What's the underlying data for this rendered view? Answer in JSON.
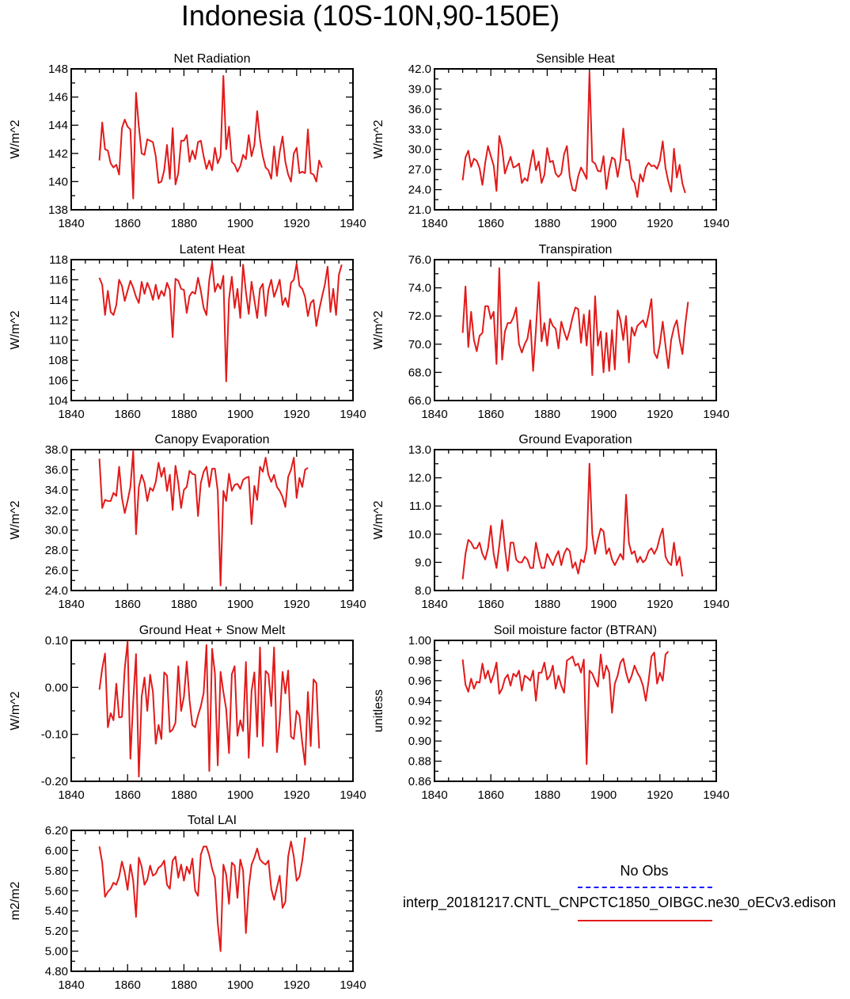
{
  "page_title": "Indonesia (10S-10N,90-150E)",
  "legend": {
    "obs_label": "No Obs",
    "model_label": "interp_20181217.CNTL_CNPCTC1850_OIBGC.ne30_oECv3.edison",
    "obs_color": "#1a1aff",
    "model_color": "#e21a1a"
  },
  "chart_data": [
    {
      "type": "line",
      "title": "Net Radiation",
      "ylabel": "W/m^2",
      "xlim": [
        1840,
        1940
      ],
      "ylim": [
        138,
        148
      ],
      "x_ticks": [
        1840,
        1860,
        1880,
        1900,
        1920,
        1940
      ],
      "y_ticks": [
        "138",
        "140",
        "142",
        "144",
        "146",
        "148"
      ],
      "series": [
        {
          "color": "#e21a1a",
          "x_start": 1850,
          "x_step": 1,
          "values": [
            141.5,
            144.2,
            142.3,
            142.2,
            141.3,
            141.0,
            141.2,
            140.5,
            143.8,
            144.4,
            143.9,
            143.7,
            138.8,
            146.3,
            143.9,
            142.0,
            141.9,
            143.0,
            142.9,
            142.8,
            141.8,
            139.9,
            140.0,
            140.8,
            142.6,
            140.2,
            143.8,
            139.8,
            140.6,
            142.9,
            142.9,
            143.3,
            141.4,
            142.2,
            141.6,
            142.8,
            142.9,
            141.8,
            140.9,
            141.5,
            140.8,
            142.4,
            141.3,
            141.8,
            147.5,
            142.3,
            143.9,
            141.4,
            141.2,
            140.7,
            141.1,
            141.9,
            141.6,
            143.3,
            141.8,
            142.6,
            145.0,
            143.0,
            141.8,
            141.0,
            140.8,
            140.2,
            142.5,
            140.4,
            142.1,
            143.2,
            141.4,
            140.5,
            140.0,
            142.0,
            142.4,
            140.6,
            140.7,
            140.6,
            143.7,
            140.6,
            140.5,
            140.0,
            141.5,
            141.0
          ]
        }
      ]
    },
    {
      "type": "line",
      "title": "Sensible Heat",
      "ylabel": "W/m^2",
      "xlim": [
        1840,
        1940
      ],
      "ylim": [
        21.0,
        42.0
      ],
      "x_ticks": [
        1840,
        1860,
        1880,
        1900,
        1920,
        1940
      ],
      "y_ticks": [
        "21.0",
        "24.0",
        "27.0",
        "30.0",
        "33.0",
        "36.0",
        "39.0",
        "42.0"
      ],
      "series": [
        {
          "color": "#e21a1a",
          "x_start": 1850,
          "x_step": 1,
          "values": [
            25.4,
            28.8,
            29.8,
            27.4,
            28.6,
            28.3,
            27.2,
            24.7,
            28.0,
            30.5,
            29.0,
            27.6,
            23.8,
            32.0,
            30.2,
            26.4,
            27.7,
            28.9,
            27.3,
            27.5,
            27.9,
            25.0,
            25.7,
            25.3,
            27.7,
            29.9,
            26.9,
            28.2,
            25.0,
            26.2,
            30.2,
            28.1,
            28.3,
            26.4,
            25.9,
            26.4,
            29.3,
            30.5,
            25.9,
            24.0,
            23.8,
            26.0,
            27.3,
            26.5,
            25.6,
            41.5,
            28.2,
            27.9,
            26.8,
            26.7,
            29.0,
            24.1,
            26.9,
            28.8,
            28.5,
            25.9,
            28.3,
            33.1,
            28.4,
            28.4,
            25.6,
            25.0,
            22.9,
            26.3,
            25.2,
            27.3,
            28.0,
            27.5,
            27.6,
            27.1,
            28.3,
            31.2,
            27.2,
            25.2,
            23.7,
            30.1,
            25.8,
            27.7,
            24.9,
            23.5
          ]
        }
      ]
    },
    {
      "type": "line",
      "title": "Latent Heat",
      "ylabel": "W/m^2",
      "xlim": [
        1840,
        1940
      ],
      "ylim": [
        104,
        118
      ],
      "x_ticks": [
        1840,
        1860,
        1880,
        1900,
        1920,
        1940
      ],
      "y_ticks": [
        "104",
        "106",
        "108",
        "110",
        "112",
        "114",
        "116",
        "118"
      ],
      "series": [
        {
          "color": "#e21a1a",
          "x_start": 1850,
          "x_step": 1,
          "values": [
            116.2,
            115.5,
            112.5,
            114.9,
            112.8,
            112.5,
            113.5,
            116.0,
            115.4,
            113.9,
            114.9,
            115.9,
            115.2,
            114.3,
            113.7,
            115.8,
            114.6,
            115.7,
            115.0,
            114.0,
            115.5,
            114.1,
            114.9,
            114.4,
            115.7,
            115.0,
            110.3,
            116.1,
            115.9,
            115.1,
            115.0,
            112.7,
            114.4,
            114.8,
            114.6,
            116.2,
            114.9,
            113.2,
            112.5,
            116.0,
            117.7,
            114.8,
            115.6,
            115.1,
            116.4,
            105.9,
            114.1,
            116.3,
            113.2,
            115.1,
            112.2,
            117.5,
            114.8,
            112.6,
            115.8,
            114.0,
            112.2,
            115.1,
            115.6,
            112.4,
            115.0,
            116.0,
            114.3,
            115.1,
            116.0,
            113.5,
            114.2,
            113.3,
            115.7,
            116.0,
            117.6,
            115.4,
            115.1,
            114.3,
            112.4,
            113.7,
            114.0,
            111.4,
            113.0,
            114.3,
            115.5,
            117.3,
            112.8,
            115.1,
            112.5,
            116.5,
            117.5
          ]
        }
      ]
    },
    {
      "type": "line",
      "title": "Transpiration",
      "ylabel": "W/m^2",
      "xlim": [
        1840,
        1940
      ],
      "ylim": [
        66.0,
        76.0
      ],
      "x_ticks": [
        1840,
        1860,
        1880,
        1900,
        1920,
        1940
      ],
      "y_ticks": [
        "66.0",
        "68.0",
        "70.0",
        "72.0",
        "74.0",
        "76.0"
      ],
      "series": [
        {
          "color": "#e21a1a",
          "x_start": 1850,
          "x_step": 1,
          "values": [
            70.8,
            74.1,
            69.8,
            72.3,
            70.3,
            69.5,
            70.6,
            70.8,
            72.7,
            72.7,
            71.8,
            72.3,
            68.6,
            75.4,
            68.9,
            70.9,
            71.5,
            71.5,
            71.9,
            72.6,
            70.0,
            69.4,
            70.0,
            70.4,
            71.7,
            68.1,
            71.0,
            74.4,
            70.2,
            71.5,
            69.9,
            71.8,
            71.3,
            71.1,
            69.7,
            71.6,
            70.9,
            70.3,
            71.0,
            71.9,
            72.6,
            72.5,
            70.1,
            72.1,
            69.9,
            72.4,
            67.8,
            73.4,
            69.9,
            70.9,
            68.0,
            70.8,
            68.1,
            71.0,
            68.2,
            72.4,
            71.7,
            70.3,
            72.0,
            68.7,
            71.2,
            70.6,
            71.3,
            71.5,
            71.7,
            71.2,
            72.1,
            73.2,
            69.4,
            69.0,
            70.0,
            71.6,
            69.9,
            68.3,
            70.3,
            71.2,
            71.7,
            70.3,
            69.3,
            71.4,
            73.0
          ]
        }
      ]
    },
    {
      "type": "line",
      "title": "Canopy Evaporation",
      "ylabel": "W/m^2",
      "xlim": [
        1840,
        1940
      ],
      "ylim": [
        24.0,
        38.0
      ],
      "x_ticks": [
        1840,
        1860,
        1880,
        1900,
        1920,
        1940
      ],
      "y_ticks": [
        "24.0",
        "26.0",
        "28.0",
        "30.0",
        "32.0",
        "34.0",
        "36.0",
        "38.0"
      ],
      "series": [
        {
          "color": "#e21a1a",
          "x_start": 1850,
          "x_step": 1,
          "values": [
            37.1,
            32.2,
            33.0,
            32.9,
            32.9,
            33.7,
            33.4,
            36.3,
            33.2,
            31.7,
            32.9,
            34.3,
            37.9,
            29.6,
            34.3,
            35.5,
            34.7,
            32.9,
            34.2,
            33.9,
            34.8,
            36.7,
            35.3,
            36.2,
            33.9,
            35.5,
            32.0,
            36.4,
            34.7,
            32.2,
            34.0,
            34.3,
            35.9,
            35.6,
            35.5,
            31.4,
            34.7,
            35.8,
            36.3,
            34.3,
            36.1,
            36.1,
            33.9,
            24.5,
            33.9,
            32.9,
            35.6,
            33.9,
            34.5,
            34.6,
            34.1,
            35.0,
            35.2,
            35.3,
            30.6,
            34.4,
            33.0,
            36.3,
            35.8,
            37.2,
            35.5,
            34.8,
            35.5,
            34.3,
            33.9,
            33.3,
            32.3,
            35.3,
            36.0,
            37.2,
            33.2,
            35.2,
            34.3,
            36.0,
            36.2
          ]
        }
      ]
    },
    {
      "type": "line",
      "title": "Ground Evaporation",
      "ylabel": "W/m^2",
      "xlim": [
        1840,
        1940
      ],
      "ylim": [
        8.0,
        13.0
      ],
      "x_ticks": [
        1840,
        1860,
        1880,
        1900,
        1920,
        1940
      ],
      "y_ticks": [
        "8.0",
        "9.0",
        "10.0",
        "11.0",
        "12.0",
        "13.0"
      ],
      "series": [
        {
          "color": "#e21a1a",
          "x_start": 1850,
          "x_step": 1,
          "values": [
            8.4,
            9.3,
            9.8,
            9.7,
            9.5,
            9.5,
            9.7,
            9.3,
            9.1,
            9.5,
            10.3,
            9.3,
            8.8,
            9.6,
            10.5,
            9.5,
            8.7,
            9.7,
            9.7,
            9.1,
            9.0,
            9.0,
            9.2,
            9.1,
            8.8,
            8.8,
            9.7,
            9.2,
            8.8,
            8.8,
            9.3,
            9.1,
            8.9,
            9.2,
            9.4,
            8.9,
            9.3,
            9.5,
            9.4,
            8.8,
            9.0,
            8.6,
            9.1,
            9.0,
            9.5,
            12.5,
            10.0,
            9.3,
            9.8,
            10.2,
            10.1,
            9.3,
            9.5,
            9.1,
            8.9,
            9.1,
            9.3,
            9.1,
            11.4,
            9.7,
            9.3,
            9.4,
            9.0,
            9.2,
            9.0,
            9.1,
            9.4,
            9.5,
            9.3,
            9.5,
            9.9,
            10.2,
            9.2,
            9.0,
            8.9,
            9.7,
            8.9,
            9.2,
            8.5
          ]
        }
      ]
    },
    {
      "type": "line",
      "title": "Ground Heat + Snow Melt",
      "ylabel": "W/m^2",
      "xlim": [
        1840,
        1940
      ],
      "ylim": [
        -0.2,
        0.1
      ],
      "x_ticks": [
        1840,
        1860,
        1880,
        1900,
        1920,
        1940
      ],
      "y_ticks": [
        "-0.20",
        "-0.10",
        "0.00",
        "0.10"
      ],
      "series": [
        {
          "color": "#e21a1a",
          "x_start": 1850,
          "x_step": 1,
          "values": [
            -0.005,
            0.04,
            0.072,
            -0.085,
            -0.055,
            -0.07,
            0.008,
            -0.064,
            -0.063,
            0.04,
            0.098,
            -0.152,
            -0.03,
            0.071,
            -0.19,
            -0.02,
            0.021,
            -0.05,
            0.027,
            -0.01,
            -0.12,
            -0.08,
            -0.11,
            0.032,
            0.025,
            -0.095,
            -0.09,
            -0.075,
            0.045,
            -0.05,
            -0.02,
            0.055,
            -0.028,
            -0.08,
            -0.085,
            -0.06,
            -0.04,
            -0.012,
            0.09,
            -0.178,
            0.082,
            0.03,
            -0.166,
            0.033,
            -0.01,
            -0.046,
            -0.14,
            0.028,
            0.045,
            -0.103,
            -0.07,
            -0.093,
            0.054,
            -0.15,
            -0.008,
            0.032,
            -0.105,
            0.085,
            -0.125,
            0.035,
            0.028,
            -0.04,
            0.085,
            -0.138,
            -0.07,
            0.033,
            -0.013,
            0.036,
            -0.105,
            -0.11,
            -0.05,
            -0.06,
            -0.118,
            -0.165,
            -0.01,
            -0.125,
            0.017,
            0.009,
            -0.13
          ]
        }
      ]
    },
    {
      "type": "line",
      "title": "Soil moisture factor (BTRAN)",
      "ylabel": "unitless",
      "xlim": [
        1840,
        1940
      ],
      "ylim": [
        0.86,
        1.0
      ],
      "x_ticks": [
        1840,
        1860,
        1880,
        1900,
        1920,
        1940
      ],
      "y_ticks": [
        "0.86",
        "0.88",
        "0.90",
        "0.92",
        "0.94",
        "0.96",
        "0.98",
        "1.00"
      ],
      "series": [
        {
          "color": "#e21a1a",
          "x_start": 1850,
          "x_step": 1,
          "values": [
            0.981,
            0.956,
            0.949,
            0.962,
            0.952,
            0.959,
            0.958,
            0.977,
            0.962,
            0.97,
            0.958,
            0.966,
            0.978,
            0.947,
            0.952,
            0.962,
            0.966,
            0.955,
            0.967,
            0.964,
            0.97,
            0.95,
            0.965,
            0.963,
            0.96,
            0.97,
            0.94,
            0.968,
            0.968,
            0.978,
            0.961,
            0.965,
            0.975,
            0.952,
            0.965,
            0.955,
            0.948,
            0.98,
            0.982,
            0.984,
            0.975,
            0.977,
            0.968,
            0.981,
            0.877,
            0.97,
            0.967,
            0.96,
            0.954,
            0.986,
            0.962,
            0.975,
            0.968,
            0.928,
            0.957,
            0.965,
            0.978,
            0.982,
            0.968,
            0.958,
            0.965,
            0.975,
            0.968,
            0.963,
            0.955,
            0.94,
            0.96,
            0.984,
            0.988,
            0.957,
            0.968,
            0.96,
            0.986,
            0.989
          ]
        }
      ]
    },
    {
      "type": "line",
      "title": "Total LAI",
      "ylabel": "m2/m2",
      "xlim": [
        1840,
        1940
      ],
      "ylim": [
        4.8,
        6.2
      ],
      "x_ticks": [
        1840,
        1860,
        1880,
        1900,
        1920,
        1940
      ],
      "y_ticks": [
        "4.80",
        "5.00",
        "5.20",
        "5.40",
        "5.60",
        "5.80",
        "6.00",
        "6.20"
      ],
      "series": [
        {
          "color": "#e21a1a",
          "x_start": 1850,
          "x_step": 1,
          "values": [
            6.04,
            5.88,
            5.54,
            5.59,
            5.62,
            5.68,
            5.66,
            5.74,
            5.89,
            5.78,
            5.61,
            5.86,
            5.7,
            5.34,
            5.93,
            5.84,
            5.66,
            5.71,
            5.85,
            5.75,
            5.77,
            5.83,
            5.85,
            5.9,
            5.66,
            5.62,
            5.9,
            5.94,
            5.73,
            5.86,
            5.7,
            5.84,
            5.77,
            5.92,
            5.6,
            5.55,
            5.96,
            6.04,
            6.04,
            5.95,
            5.82,
            5.73,
            5.28,
            5.0,
            5.86,
            5.76,
            5.47,
            5.88,
            5.85,
            5.53,
            5.91,
            5.8,
            5.18,
            5.63,
            5.86,
            5.93,
            6.02,
            5.91,
            5.88,
            5.86,
            5.9,
            5.62,
            5.51,
            5.63,
            5.75,
            5.43,
            5.49,
            5.94,
            6.09,
            5.94,
            5.7,
            5.74,
            5.9,
            6.13
          ]
        }
      ]
    }
  ]
}
